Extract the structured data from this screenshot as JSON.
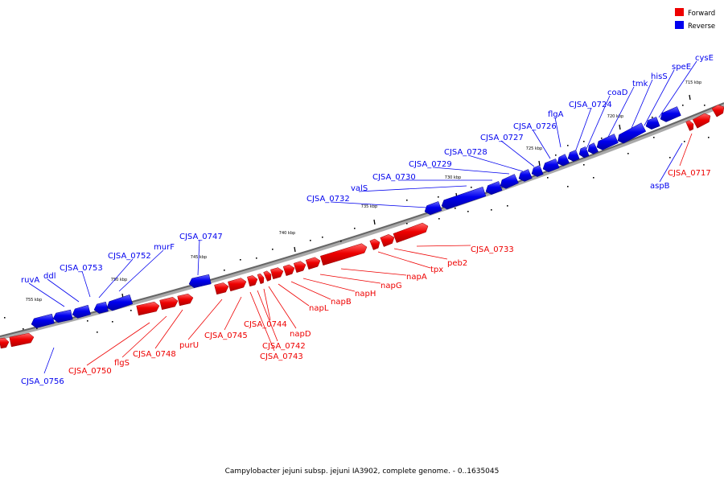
{
  "legend": {
    "forward": {
      "label": "Forward",
      "color": "#ee0000"
    },
    "reverse": {
      "label": "Reverse",
      "color": "#0000ee"
    }
  },
  "caption": "Campylobacter jejuni subsp. jejuni IA3902, complete genome. - 0..1635045",
  "scale_labels": [
    "715 kbp",
    "720 kbp",
    "725 kbp",
    "730 kbp",
    "735 kbp",
    "740 kbp",
    "745 kbp",
    "750 kbp",
    "755 kbp"
  ],
  "reverse_labels": [
    "cysE",
    "speE",
    "hisS",
    "tmk",
    "coaD",
    "CJSA_0724",
    "flgA",
    "CJSA_0726",
    "CJSA_0727",
    "CJSA_0728",
    "CJSA_0729",
    "CJSA_0730",
    "valS",
    "CJSA_0732",
    "CJSA_0747",
    "murF",
    "CJSA_0752",
    "CJSA_0753",
    "ddl",
    "ruvA",
    "aspB",
    "CJSA_0756"
  ],
  "forward_labels": [
    "CJSA_0717",
    "CJSA_0733",
    "peb2",
    "tpx",
    "napA",
    "napG",
    "napH",
    "napB",
    "napL",
    "napD",
    "CJSA_0744",
    "CJSA_0742",
    "CJSA_0743",
    "CJSA_0745",
    "purU",
    "CJSA_0748",
    "flgS",
    "CJSA_0750"
  ]
}
